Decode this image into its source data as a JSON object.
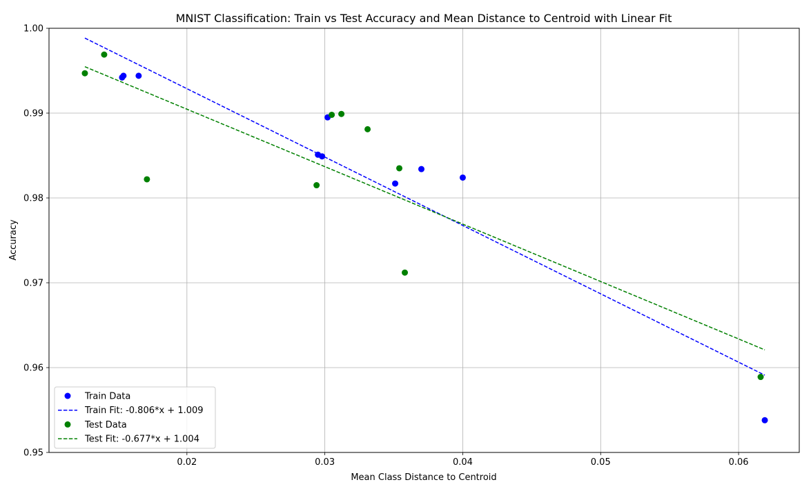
{
  "chart_data": {
    "type": "scatter",
    "title": "MNIST Classification: Train vs Test Accuracy and Mean Distance to Centroid with Linear Fit",
    "xlabel": "Mean Class Distance to Centroid",
    "ylabel": "Accuracy",
    "xlim": [
      0.01,
      0.0644
    ],
    "ylim": [
      0.95,
      1.0
    ],
    "xticks": [
      0.02,
      0.03,
      0.04,
      0.05,
      0.06
    ],
    "xtick_labels": [
      "0.02",
      "0.03",
      "0.04",
      "0.05",
      "0.06"
    ],
    "yticks": [
      0.95,
      0.96,
      0.97,
      0.98,
      0.99,
      1.0
    ],
    "ytick_labels": [
      "0.95",
      "0.96",
      "0.97",
      "0.98",
      "0.99",
      "1.00"
    ],
    "grid": true,
    "legend_position": "lower-left",
    "series": [
      {
        "name": "Train Data",
        "kind": "scatter",
        "color": "#0000ff",
        "points": [
          [
            0.0153,
            0.9942
          ],
          [
            0.0154,
            0.9944
          ],
          [
            0.0165,
            0.9944
          ],
          [
            0.0295,
            0.9851
          ],
          [
            0.0298,
            0.9849
          ],
          [
            0.0302,
            0.9895
          ],
          [
            0.0351,
            0.9817
          ],
          [
            0.037,
            0.9834
          ],
          [
            0.04,
            0.9824
          ],
          [
            0.0619,
            0.9538
          ]
        ]
      },
      {
        "name": "Train Fit: -0.806*x + 1.009",
        "kind": "line",
        "style": "dashed",
        "color": "#0000ff",
        "slope": -0.806,
        "intercept": 1.009,
        "x_range": [
          0.0126,
          0.0619
        ]
      },
      {
        "name": "Test Data",
        "kind": "scatter",
        "color": "#008000",
        "points": [
          [
            0.0126,
            0.9947
          ],
          [
            0.014,
            0.9969
          ],
          [
            0.0171,
            0.9822
          ],
          [
            0.0294,
            0.9815
          ],
          [
            0.0305,
            0.9898
          ],
          [
            0.0312,
            0.9899
          ],
          [
            0.0331,
            0.9881
          ],
          [
            0.0354,
            0.9835
          ],
          [
            0.0358,
            0.9712
          ],
          [
            0.0616,
            0.9589
          ]
        ]
      },
      {
        "name": "Test Fit: -0.677*x + 1.004",
        "kind": "line",
        "style": "dashed",
        "color": "#008000",
        "slope": -0.677,
        "intercept": 1.004,
        "x_range": [
          0.0126,
          0.0619
        ]
      }
    ]
  }
}
